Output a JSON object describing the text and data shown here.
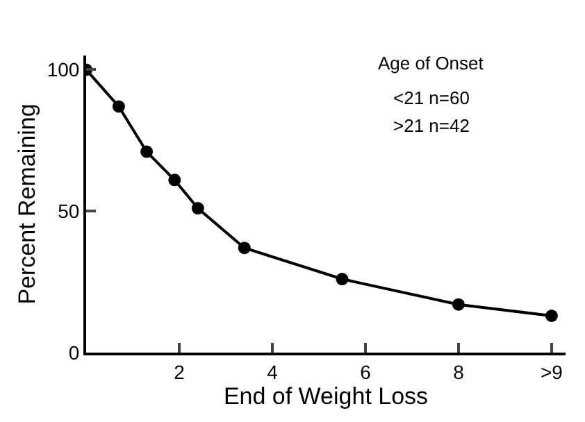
{
  "chart_data": {
    "type": "line",
    "xlabel": "End of Weight Loss",
    "ylabel": "Percent Remaining",
    "annotations": [
      "Age of Onset",
      "<21 n=60",
      ">21 n=42"
    ],
    "x": [
      0,
      0.7,
      1.3,
      1.9,
      2.4,
      3.4,
      5.5,
      8,
      10
    ],
    "series": [
      {
        "color": "#000000",
        "values": [
          100,
          87,
          71,
          61,
          51,
          37,
          26,
          17,
          13
        ]
      }
    ],
    "xlim": [
      0,
      10.3
    ],
    "ylim": [
      0,
      105
    ],
    "xticks": [
      2,
      4,
      6,
      8,
      {
        "value": 10,
        "label": ">9"
      }
    ],
    "yticks": [
      0,
      50,
      100
    ],
    "marker": "circle",
    "line_style": "solid"
  }
}
